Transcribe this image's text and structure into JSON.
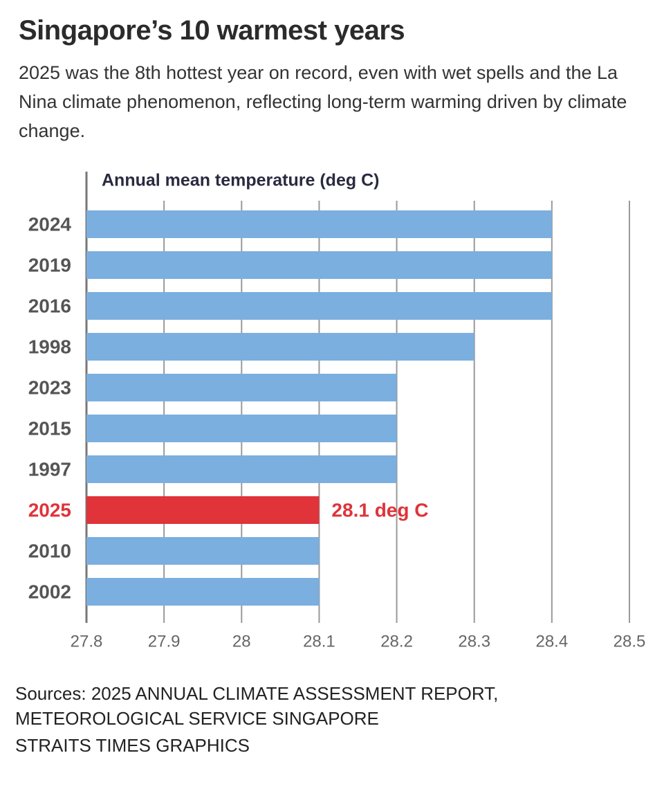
{
  "chart_data": {
    "type": "bar",
    "orientation": "horizontal",
    "title": "Singapore’s 10 warmest years",
    "subtitle": "2025 was the 8th hottest year on record, even with wet spells and the La Nina climate phenomenon, reflecting long-term warming driven by climate change.",
    "x_label": "Annual mean temperature (deg C)",
    "categories": [
      "2024",
      "2019",
      "2016",
      "1998",
      "2023",
      "2015",
      "1997",
      "2025",
      "2010",
      "2002"
    ],
    "values": [
      28.4,
      28.4,
      28.4,
      28.3,
      28.2,
      28.2,
      28.2,
      28.1,
      28.1,
      28.1
    ],
    "value_labels": [
      null,
      null,
      null,
      null,
      null,
      null,
      null,
      "28.1 deg C",
      null,
      null
    ],
    "color": "#7aafdf",
    "colors": [
      "#7aafdf",
      "#7aafdf",
      "#7aafdf",
      "#7aafdf",
      "#7aafdf",
      "#7aafdf",
      "#7aafdf",
      "#e0333a",
      "#7aafdf",
      "#7aafdf"
    ],
    "xlim": [
      27.8,
      28.5
    ],
    "xticks": [
      27.8,
      27.9,
      28,
      28.1,
      28.2,
      28.3,
      28.4,
      28.5
    ],
    "grid": true,
    "source": "Sources: 2025 ANNUAL CLIMATE ASSESSMENT REPORT, METEOROLOGICAL SERVICE SINGAPORE",
    "credit": "STRAITS TIMES GRAPHICS"
  }
}
